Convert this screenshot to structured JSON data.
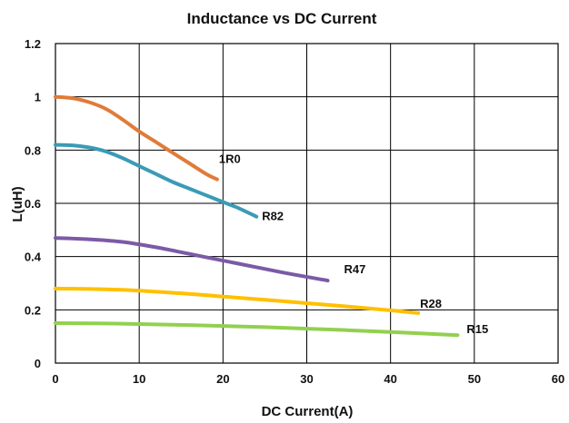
{
  "chart_data": {
    "type": "line",
    "title": "Inductance  vs DC Current",
    "xlabel": "DC Current(A)",
    "ylabel": "L(uH)",
    "xlim": [
      0,
      60
    ],
    "ylim": [
      0,
      1.2
    ],
    "x_ticks": [
      "0",
      "10",
      "20",
      "30",
      "40",
      "50",
      "60"
    ],
    "y_ticks": [
      "0",
      "0.2",
      "0.4",
      "0.6",
      "0.8",
      "1",
      "1.2"
    ],
    "grid": true,
    "series": [
      {
        "name": "1R0",
        "color": "#E07B39",
        "x": [
          0,
          2,
          4,
          6,
          8,
          10,
          12,
          14,
          16,
          18,
          19.3
        ],
        "y": [
          1.0,
          0.995,
          0.98,
          0.955,
          0.915,
          0.87,
          0.83,
          0.79,
          0.75,
          0.71,
          0.69
        ]
      },
      {
        "name": "R82",
        "color": "#3A9BB5",
        "x": [
          0,
          2,
          4,
          6,
          8,
          10,
          12,
          14,
          16,
          18,
          20,
          22,
          24
        ],
        "y": [
          0.82,
          0.818,
          0.81,
          0.795,
          0.77,
          0.74,
          0.71,
          0.68,
          0.655,
          0.63,
          0.605,
          0.58,
          0.55
        ]
      },
      {
        "name": "R47",
        "color": "#7B5AA6",
        "x": [
          0,
          4,
          8,
          12,
          16,
          20,
          24,
          28,
          32.5
        ],
        "y": [
          0.47,
          0.465,
          0.455,
          0.435,
          0.41,
          0.385,
          0.36,
          0.335,
          0.31
        ]
      },
      {
        "name": "R28",
        "color": "#FFC000",
        "x": [
          0,
          5,
          10,
          15,
          20,
          25,
          30,
          35,
          40,
          43.3
        ],
        "y": [
          0.28,
          0.278,
          0.272,
          0.262,
          0.25,
          0.238,
          0.225,
          0.212,
          0.198,
          0.188
        ]
      },
      {
        "name": "R15",
        "color": "#92D050",
        "x": [
          0,
          8,
          16,
          24,
          32,
          40,
          48
        ],
        "y": [
          0.15,
          0.148,
          0.143,
          0.136,
          0.127,
          0.117,
          0.105
        ]
      }
    ]
  }
}
